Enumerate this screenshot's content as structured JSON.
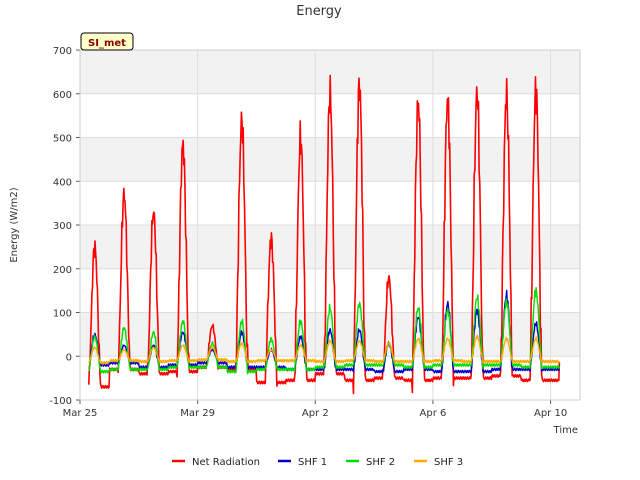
{
  "chart_data": {
    "type": "line",
    "title": "Energy",
    "xlabel": "Time",
    "ylabel": "Energy (W/m2)",
    "badge": "SI_met",
    "ylim": [
      -100,
      700
    ],
    "xlim": [
      0,
      17
    ],
    "yticks": [
      -100,
      0,
      100,
      200,
      300,
      400,
      500,
      600,
      700
    ],
    "xticks": [
      {
        "day": 0,
        "label": "Mar 25"
      },
      {
        "day": 4,
        "label": "Mar 29"
      },
      {
        "day": 8,
        "label": "Apr 2"
      },
      {
        "day": 12,
        "label": "Apr 6"
      },
      {
        "day": 16,
        "label": "Apr 10"
      }
    ],
    "x_range_days": [
      0.3,
      16.3
    ],
    "grid": true,
    "legend_position": "bottom",
    "series": [
      {
        "name": "Net Radiation",
        "color": "#ff0000",
        "night": [
          -70,
          -30,
          -40,
          -35,
          -25,
          -30,
          -60,
          -55,
          -40,
          -55,
          -50,
          -55,
          -50,
          -50,
          -45,
          -55
        ],
        "peaks": [
          250,
          370,
          330,
          485,
          70,
          540,
          270,
          500,
          600,
          620,
          180,
          580,
          590,
          605,
          600,
          608
        ]
      },
      {
        "name": "SHF 1",
        "color": "#0000cc",
        "night": [
          -20,
          -15,
          -25,
          -20,
          -15,
          -25,
          -25,
          -30,
          -30,
          -30,
          -35,
          -30,
          -35,
          -35,
          -30,
          -30
        ],
        "peaks": [
          50,
          25,
          25,
          55,
          15,
          55,
          15,
          45,
          60,
          60,
          30,
          90,
          120,
          105,
          140,
          75
        ]
      },
      {
        "name": "SHF 2",
        "color": "#00dd00",
        "night": [
          -35,
          -30,
          -30,
          -25,
          -25,
          -35,
          -30,
          -30,
          -25,
          -20,
          -20,
          -25,
          -20,
          -20,
          -20,
          -25
        ],
        "peaks": [
          45,
          65,
          55,
          80,
          30,
          80,
          40,
          80,
          110,
          120,
          30,
          110,
          105,
          135,
          125,
          150
        ]
      },
      {
        "name": "SHF 3",
        "color": "#ffaa00",
        "night": [
          -15,
          -10,
          -12,
          -10,
          -8,
          -12,
          -10,
          -10,
          -12,
          -10,
          -12,
          -12,
          -10,
          -12,
          -12,
          -12
        ],
        "peaks": [
          20,
          15,
          20,
          25,
          20,
          30,
          15,
          25,
          35,
          35,
          30,
          40,
          40,
          45,
          40,
          40
        ]
      }
    ]
  }
}
